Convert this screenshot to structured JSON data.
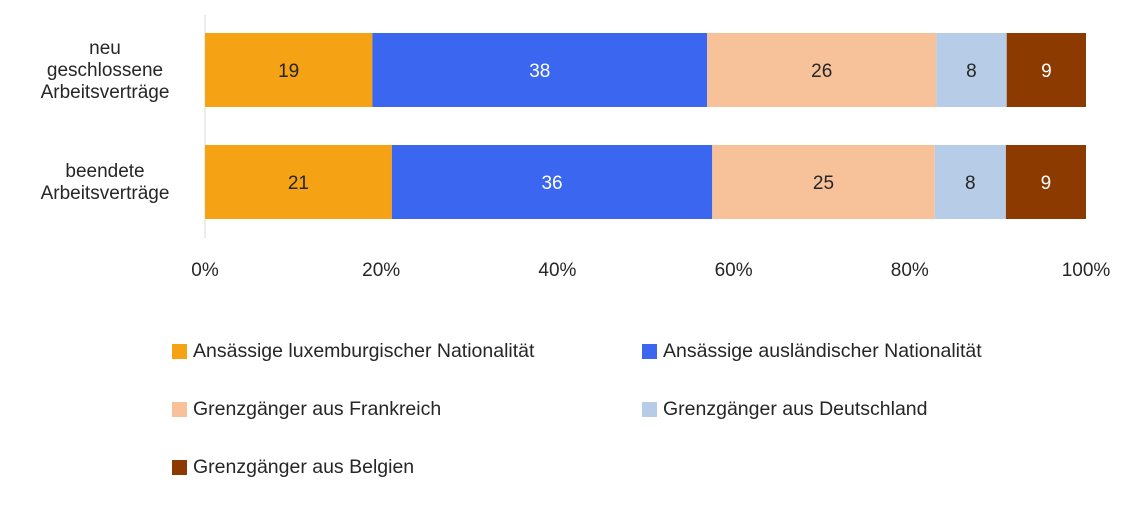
{
  "chart_data": {
    "type": "bar",
    "orientation": "horizontal",
    "stacked": "percent",
    "categories": [
      [
        "neu",
        "geschlossene",
        "Arbeitsverträge"
      ],
      [
        "beendete",
        "Arbeitsverträge"
      ]
    ],
    "series": [
      {
        "name": "Ansässige luxemburgischer Nationalität",
        "values": [
          19,
          21
        ],
        "color": "#F5A214",
        "label_color": "#262626"
      },
      {
        "name": "Ansässige ausländischer Nationalität",
        "values": [
          38,
          36
        ],
        "color": "#3A66F0",
        "label_color": "#ffffff"
      },
      {
        "name": "Grenzgänger aus Frankreich",
        "values": [
          26,
          25
        ],
        "color": "#F7C29A",
        "label_color": "#262626"
      },
      {
        "name": "Grenzgänger aus Deutschland",
        "values": [
          8,
          8
        ],
        "color": "#B7CCE6",
        "label_color": "#262626"
      },
      {
        "name": "Grenzgänger aus Belgien",
        "values": [
          9,
          9
        ],
        "color": "#8C3A00",
        "label_color": "#ffffff"
      }
    ],
    "x_ticks": [
      "0%",
      "20%",
      "40%",
      "60%",
      "80%",
      "100%"
    ],
    "xlim": [
      0,
      100
    ],
    "grid": false,
    "legend_position": "bottom",
    "title": "",
    "xlabel": "",
    "ylabel": ""
  }
}
